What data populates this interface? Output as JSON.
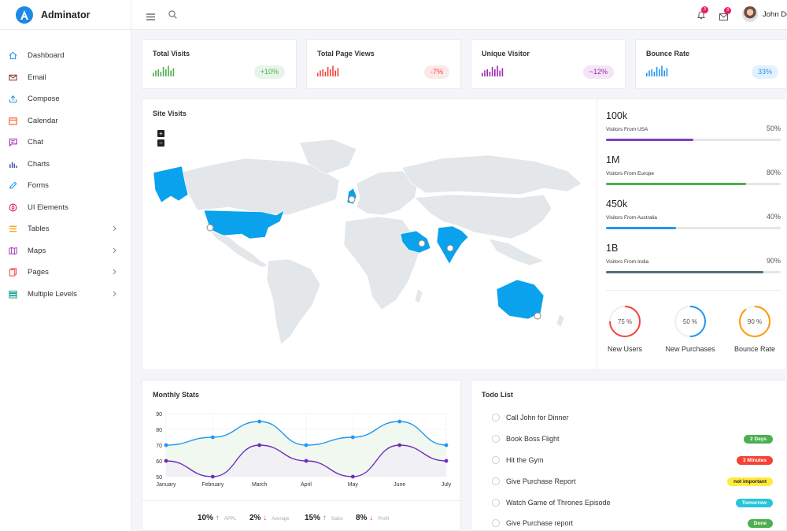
{
  "app": {
    "name": "Adminator"
  },
  "sidebar": {
    "items": [
      {
        "label": "Dashboard",
        "icon": "home-icon",
        "color": "#2196f3",
        "chevron": false
      },
      {
        "label": "Email",
        "icon": "mail-icon",
        "color": "#8d3b3b",
        "chevron": false
      },
      {
        "label": "Compose",
        "icon": "compose-icon",
        "color": "#2196f3",
        "chevron": false
      },
      {
        "label": "Calendar",
        "icon": "calendar-icon",
        "color": "#ff5722",
        "chevron": false
      },
      {
        "label": "Chat",
        "icon": "chat-icon",
        "color": "#9c27b0",
        "chevron": false
      },
      {
        "label": "Charts",
        "icon": "charts-icon",
        "color": "#3f51b5",
        "chevron": false
      },
      {
        "label": "Forms",
        "icon": "pencil-icon",
        "color": "#2196f3",
        "chevron": false
      },
      {
        "label": "UI Elements",
        "icon": "palette-icon",
        "color": "#e91e63",
        "chevron": false
      },
      {
        "label": "Tables",
        "icon": "tables-icon",
        "color": "#ff9800",
        "chevron": true
      },
      {
        "label": "Maps",
        "icon": "map-icon",
        "color": "#9c27b0",
        "chevron": true
      },
      {
        "label": "Pages",
        "icon": "pages-icon",
        "color": "#f44336",
        "chevron": true
      },
      {
        "label": "Multiple Levels",
        "icon": "layers-icon",
        "color": "#009688",
        "chevron": true
      }
    ]
  },
  "topbar": {
    "notifications_count": "3",
    "messages_count": "3",
    "user_name": "John Doe"
  },
  "stats": [
    {
      "title": "Total Visits",
      "value": "+10%",
      "color": "#4caf50",
      "bg": "#e6f5e7",
      "bars": [
        3,
        5,
        6,
        4,
        8,
        6,
        9,
        5,
        7
      ]
    },
    {
      "title": "Total Page Views",
      "value": "-7%",
      "color": "#f44336",
      "bg": "#fde8e8",
      "bars": [
        3,
        5,
        6,
        4,
        8,
        6,
        9,
        5,
        7
      ]
    },
    {
      "title": "Unique Visitor",
      "value": "~12%",
      "color": "#9c27b0",
      "bg": "#f3e5f5",
      "bars": [
        3,
        5,
        6,
        4,
        8,
        6,
        9,
        5,
        7
      ]
    },
    {
      "title": "Bounce Rate",
      "value": "33%",
      "color": "#2196f3",
      "bg": "#e3f1fd",
      "bars": [
        3,
        5,
        6,
        4,
        8,
        6,
        9,
        5,
        7
      ]
    }
  ],
  "site_visits": {
    "title": "Site Visits",
    "zoom_in": "+",
    "zoom_out": "−",
    "visitors": [
      {
        "value": "100k",
        "label": "Visitors From USA",
        "percent": "50%",
        "fill": 0.5,
        "color": "#7b3fc4"
      },
      {
        "value": "1M",
        "label": "Visitors From Europe",
        "percent": "80%",
        "fill": 0.8,
        "color": "#4caf50"
      },
      {
        "value": "450k",
        "label": "Visitors From Australia",
        "percent": "40%",
        "fill": 0.4,
        "color": "#2196f3"
      },
      {
        "value": "1B",
        "label": "Visitors From India",
        "percent": "90%",
        "fill": 0.9,
        "color": "#546e7a"
      }
    ],
    "gauges": [
      {
        "label": "New Users",
        "value": "75 %",
        "fraction": 0.75,
        "color": "#f44336"
      },
      {
        "label": "New Purchases",
        "value": "50 %",
        "fraction": 0.5,
        "color": "#2196f3"
      },
      {
        "label": "Bounce Rate",
        "value": "90 %",
        "fraction": 0.9,
        "color": "#ff9800"
      }
    ]
  },
  "monthly_stats": {
    "title": "Monthly Stats",
    "footer": [
      {
        "value": "10%",
        "label": "APPL",
        "trend": "up",
        "color": "#4caf50"
      },
      {
        "value": "2%",
        "label": "Average",
        "trend": "down",
        "color": "#f44336"
      },
      {
        "value": "15%",
        "label": "Sales",
        "trend": "up",
        "color": "#4caf50"
      },
      {
        "value": "8%",
        "label": "Profit",
        "trend": "down",
        "color": "#f44336"
      }
    ]
  },
  "chart_data": {
    "type": "line",
    "categories": [
      "January",
      "February",
      "March",
      "April",
      "May",
      "June",
      "July"
    ],
    "series": [
      {
        "values": [
          70,
          75,
          85,
          70,
          75,
          85,
          70
        ],
        "color": "#2196f3",
        "fill": "#eef7ee"
      },
      {
        "values": [
          60,
          50,
          70,
          60,
          50,
          70,
          60
        ],
        "color": "#6f2dbd",
        "fill": "#f1eff5"
      }
    ],
    "yticks": [
      "50",
      "60",
      "70",
      "80",
      "90"
    ],
    "ylim": [
      50,
      90
    ],
    "grid": true
  },
  "todo": {
    "title": "Todo List",
    "items": [
      {
        "text": "Call John for Dinner",
        "badge": ""
      },
      {
        "text": "Book Boss Flight",
        "badge": "2 Days",
        "badge_bg": "#4caf50",
        "badge_color": "#fff"
      },
      {
        "text": "Hit the Gym",
        "badge": "3 Minutes",
        "badge_bg": "#f44336",
        "badge_color": "#fff"
      },
      {
        "text": "Give Purchase Report",
        "badge": "not important",
        "badge_bg": "#ffeb3b",
        "badge_color": "#222"
      },
      {
        "text": "Watch Game of Thrones Episode",
        "badge": "Tomorrow",
        "badge_bg": "#26c6da",
        "badge_color": "#fff"
      },
      {
        "text": "Give Purchase report",
        "badge": "Done",
        "badge_bg": "#4caf50",
        "badge_color": "#fff"
      }
    ]
  }
}
